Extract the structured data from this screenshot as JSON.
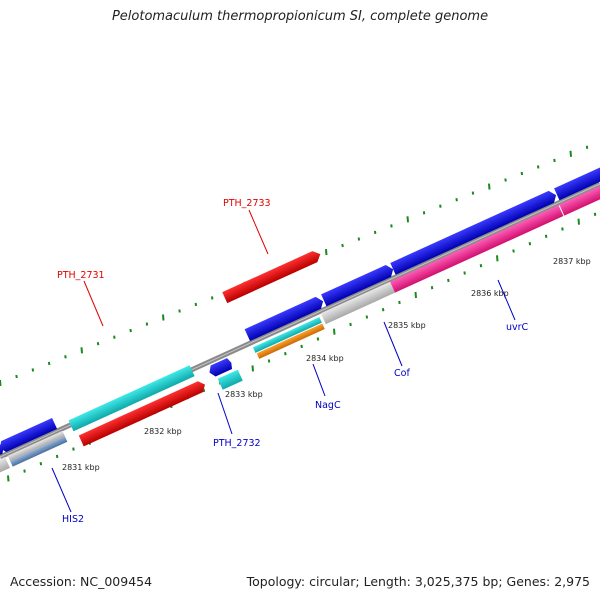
{
  "title": "Pelotomaculum thermopropionicum SI, complete genome",
  "footer": {
    "accession": "Accession: NC_009454",
    "summary": "Topology: circular; Length: 3,025,375 bp; Genes: 2,975"
  },
  "colors": {
    "backbone": "#8a8a8a",
    "tick": "#1a8a1a",
    "red_label": "#e00000",
    "blue_label": "#0000c8"
  },
  "tick_labels": [
    "2831 kbp",
    "2832 kbp",
    "2833 kbp",
    "2834 kbp",
    "2835 kbp",
    "2836 kbp",
    "2837 kbp"
  ],
  "gene_labels": [
    {
      "id": "PTH_2731",
      "text": "PTH_2731",
      "color": "red"
    },
    {
      "id": "PTH_2733",
      "text": "PTH_2733",
      "color": "red"
    },
    {
      "id": "PTH_2732",
      "text": "PTH_2732",
      "color": "blue"
    },
    {
      "id": "NagC",
      "text": "NagC",
      "color": "blue"
    },
    {
      "id": "Cof",
      "text": "Cof",
      "color": "blue"
    },
    {
      "id": "uvrC",
      "text": "uvrC",
      "color": "blue"
    },
    {
      "id": "HIS2",
      "text": "HIS2",
      "color": "blue"
    }
  ]
}
